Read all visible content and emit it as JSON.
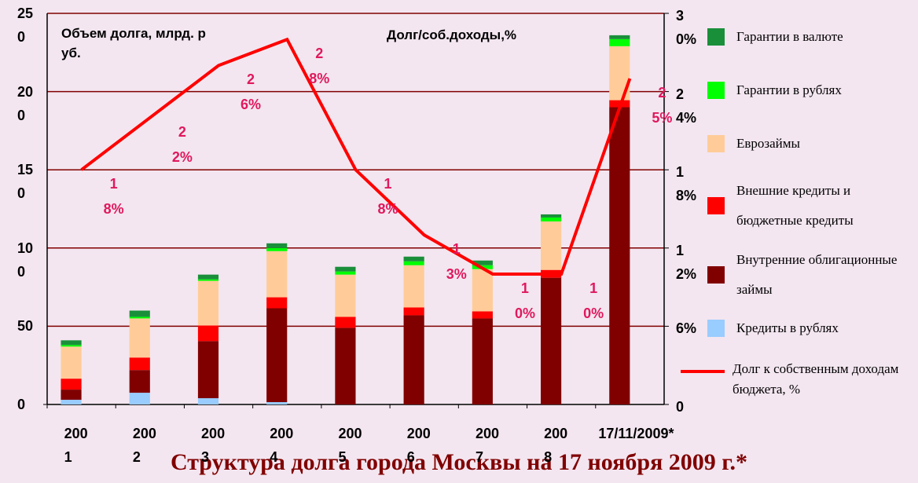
{
  "chart_data": {
    "type": "bar",
    "stacked": true,
    "title": "Структура долга города Москвы на 17 ноября 2009 г.*",
    "y_label": "Объем долга, млрд. руб.",
    "y2_label": "Долг/соб.доходы,%",
    "categories": [
      "2001",
      "2002",
      "2003",
      "2004",
      "2005",
      "2006",
      "2007",
      "2008",
      "17/11/2009*"
    ],
    "ylim": [
      0,
      250
    ],
    "yticks": [
      0,
      50,
      100,
      150,
      200,
      250
    ],
    "y2lim": [
      0,
      30
    ],
    "y2ticks": [
      0,
      {
        "value": 6,
        "label": "6%"
      },
      {
        "value": 12,
        "label": "12%"
      },
      {
        "value": 18,
        "label": "18%"
      },
      {
        "value": 24,
        "label": "24%"
      },
      {
        "value": 30,
        "label": "30%"
      }
    ],
    "grid": true,
    "legend": "right",
    "series": [
      {
        "name": "Кредиты в рублях",
        "color": "#99ccff",
        "values": [
          3,
          7.5,
          4,
          1.5,
          0,
          0,
          0,
          0,
          0
        ]
      },
      {
        "name": "Внутренние облигационные займы",
        "color": "#800000",
        "values": [
          6.5,
          14.5,
          36.5,
          60,
          49,
          57,
          55,
          81,
          190
        ]
      },
      {
        "name": "Внешние кредиты и бюджетные кредиты",
        "color": "#ff0000",
        "values": [
          7,
          8,
          10,
          7,
          7,
          5,
          4.5,
          5,
          4.5
        ]
      },
      {
        "name": "Еврозаймы",
        "color": "#ffcc99",
        "values": [
          20.5,
          25,
          28.5,
          29.5,
          27,
          27,
          27,
          31,
          34.5
        ]
      },
      {
        "name": "Гарантии в рублях",
        "color": "#00ff00",
        "values": [
          1,
          1,
          1,
          2,
          2,
          2.5,
          2.5,
          2.5,
          4.5
        ]
      },
      {
        "name": "Гарантии в валюте",
        "color": "#1a8f3a",
        "values": [
          3,
          4,
          3,
          3,
          3,
          3,
          3,
          2,
          2.5
        ]
      },
      {
        "name": "Долг к собственным доходам бюджета, %",
        "color": "#ff0000",
        "type": "line",
        "axis": "y2",
        "values": [
          18,
          22,
          26,
          28,
          18,
          13,
          10,
          10,
          25
        ],
        "value_labels": [
          "18%",
          "22%",
          "26%",
          "28%",
          "18%",
          "13%",
          "10%",
          "10%",
          "25%"
        ]
      }
    ]
  }
}
